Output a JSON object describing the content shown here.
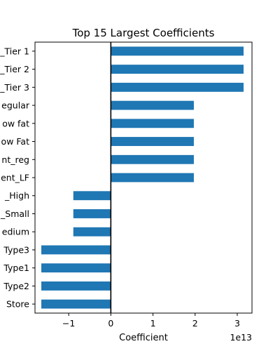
{
  "chart_data": {
    "type": "bar",
    "orientation": "horizontal",
    "title": "Top 15 Largest Coefficients",
    "xlabel": "Coefficient",
    "ylabel": "",
    "x_offset_label": "1e13",
    "xlim": [
      -1.8,
      3.35
    ],
    "x_ticks": [
      -1,
      0,
      1,
      2,
      3
    ],
    "x_tick_labels": [
      "−1",
      "0",
      "1",
      "2",
      "3"
    ],
    "bar_color": "#1f77b4",
    "zero_line_color": "#000000",
    "grid": false,
    "categories": [
      "_Tier 1",
      "_Tier 2",
      "_Tier 3",
      "egular",
      "ow fat",
      "ow Fat",
      "nt_reg",
      "ent_LF",
      "_High",
      "_Small",
      "edium",
      "Type3",
      "Type1",
      "Type2",
      "Store"
    ],
    "values": [
      3.15,
      3.15,
      3.15,
      1.97,
      1.97,
      1.97,
      1.97,
      1.97,
      -0.89,
      -0.89,
      -0.89,
      -1.65,
      -1.65,
      -1.65,
      -1.65
    ]
  }
}
